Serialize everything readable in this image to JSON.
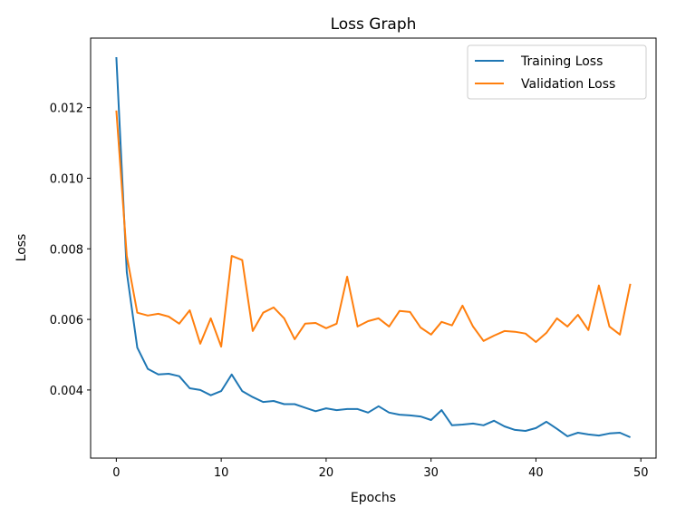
{
  "chart_data": {
    "type": "line",
    "title": "Loss Graph",
    "xlabel": "Epochs",
    "ylabel": "Loss",
    "xlim": [
      -2.45,
      51.45
    ],
    "ylim": [
      0.00207,
      0.01397
    ],
    "xticks": [
      0,
      10,
      20,
      30,
      40,
      50
    ],
    "yticks": [
      0.004,
      0.006,
      0.008,
      0.01,
      0.012
    ],
    "ytick_labels": [
      "0.004",
      "0.006",
      "0.008",
      "0.010",
      "0.012"
    ],
    "grid": false,
    "legend_position": "top-right",
    "x": [
      0,
      1,
      2,
      3,
      4,
      5,
      6,
      7,
      8,
      9,
      10,
      11,
      12,
      13,
      14,
      15,
      16,
      17,
      18,
      19,
      20,
      21,
      22,
      23,
      24,
      25,
      26,
      27,
      28,
      29,
      30,
      31,
      32,
      33,
      34,
      35,
      36,
      37,
      38,
      39,
      40,
      41,
      42,
      43,
      44,
      45,
      46,
      47,
      48,
      49
    ],
    "series": [
      {
        "name": "Training Loss",
        "color": "#1f77b4",
        "values": [
          0.01343,
          0.00734,
          0.0052,
          0.0046,
          0.00444,
          0.00446,
          0.00439,
          0.00405,
          0.004,
          0.00385,
          0.00397,
          0.00444,
          0.00397,
          0.0038,
          0.00366,
          0.00369,
          0.0036,
          0.0036,
          0.0035,
          0.0034,
          0.00348,
          0.00343,
          0.00346,
          0.00346,
          0.00336,
          0.00354,
          0.00336,
          0.0033,
          0.00328,
          0.00325,
          0.00315,
          0.00343,
          0.003,
          0.00302,
          0.00305,
          0.003,
          0.00313,
          0.00297,
          0.00287,
          0.00284,
          0.00292,
          0.0031,
          0.0029,
          0.00269,
          0.00279,
          0.00274,
          0.00271,
          0.00277,
          0.00279,
          0.00266
        ]
      },
      {
        "name": "Validation Loss",
        "color": "#ff7f0e",
        "values": [
          0.01192,
          0.0078,
          0.00619,
          0.00611,
          0.00616,
          0.00608,
          0.00588,
          0.00626,
          0.00531,
          0.00603,
          0.00523,
          0.0078,
          0.00768,
          0.00567,
          0.00619,
          0.00634,
          0.00603,
          0.00544,
          0.00588,
          0.0059,
          0.00575,
          0.00588,
          0.00721,
          0.0058,
          0.00595,
          0.00603,
          0.0058,
          0.00624,
          0.00621,
          0.00577,
          0.00557,
          0.00593,
          0.00583,
          0.00639,
          0.0058,
          0.00539,
          0.00554,
          0.00567,
          0.00565,
          0.0056,
          0.00536,
          0.00562,
          0.00603,
          0.0058,
          0.00613,
          0.0057,
          0.00696,
          0.0058,
          0.00557,
          0.00701
        ]
      }
    ]
  }
}
